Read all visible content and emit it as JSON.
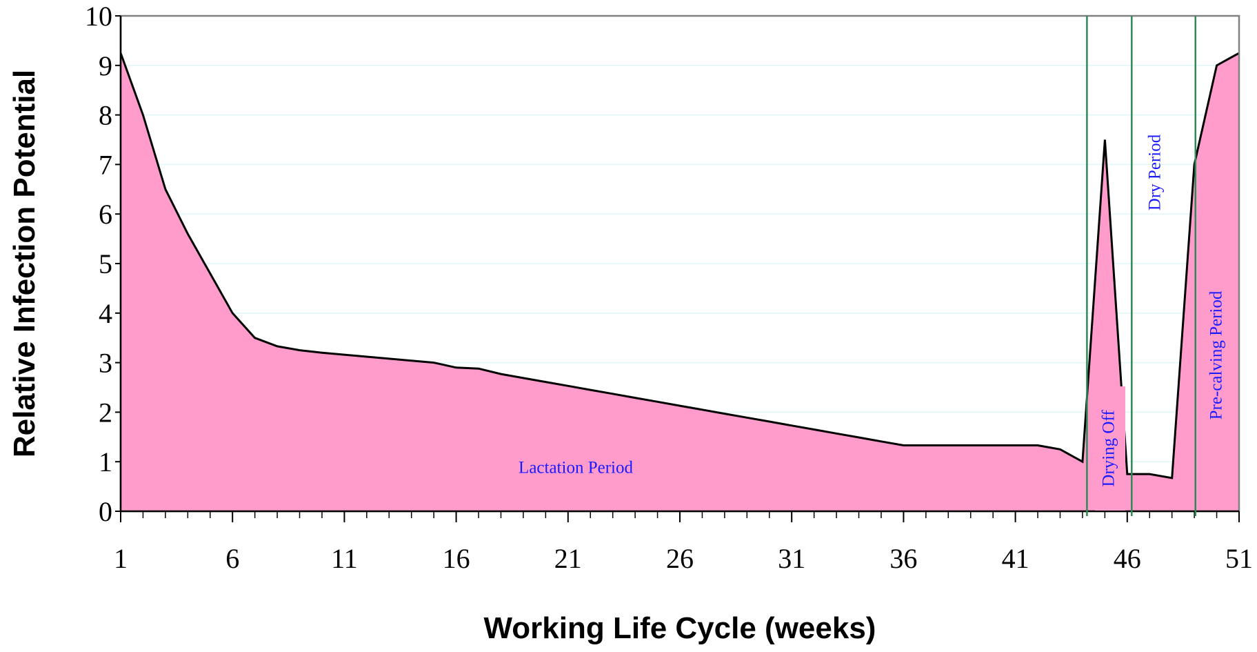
{
  "chart_data": {
    "type": "area",
    "x_label": "Working Life Cycle (weeks)",
    "y_label": "Relative Infection Potential",
    "x": [
      1,
      2,
      3,
      4,
      5,
      6,
      7,
      8,
      9,
      10,
      11,
      12,
      13,
      14,
      15,
      16,
      17,
      18,
      19,
      20,
      21,
      22,
      23,
      24,
      25,
      26,
      27,
      28,
      29,
      30,
      31,
      32,
      33,
      34,
      35,
      36,
      37,
      38,
      39,
      40,
      41,
      42,
      43,
      44,
      45,
      46,
      47,
      48,
      49,
      50,
      51
    ],
    "values": [
      9.25,
      8.0,
      6.5,
      5.6,
      4.8,
      4.0,
      3.5,
      3.33,
      3.25,
      3.2,
      3.16,
      3.12,
      3.08,
      3.04,
      3.0,
      2.9,
      2.88,
      2.77,
      2.69,
      2.61,
      2.53,
      2.45,
      2.37,
      2.29,
      2.21,
      2.13,
      2.05,
      1.97,
      1.89,
      1.81,
      1.73,
      1.65,
      1.57,
      1.49,
      1.41,
      1.33,
      1.33,
      1.33,
      1.33,
      1.33,
      1.33,
      1.33,
      1.25,
      1.0,
      7.5,
      0.75,
      0.75,
      0.67,
      7.0,
      9.0,
      9.25
    ],
    "color": "#ff9ccc",
    "line_color": "#000000",
    "xlim": [
      1,
      51
    ],
    "ylim": [
      0,
      10
    ],
    "xticks": [
      1,
      6,
      11,
      16,
      21,
      26,
      31,
      36,
      41,
      46,
      51
    ],
    "yticks": [
      0,
      1,
      2,
      3,
      4,
      5,
      6,
      7,
      8,
      9,
      10
    ],
    "grid": true,
    "period_boundaries": [
      44.2,
      46.2,
      49.05
    ],
    "boundary_color": "#2e8b57",
    "annotations": [
      {
        "text": "Lactation Period"
      },
      {
        "text": "Drying Off"
      },
      {
        "text": "Dry Period"
      },
      {
        "text": "Pre-calving Period"
      }
    ]
  }
}
